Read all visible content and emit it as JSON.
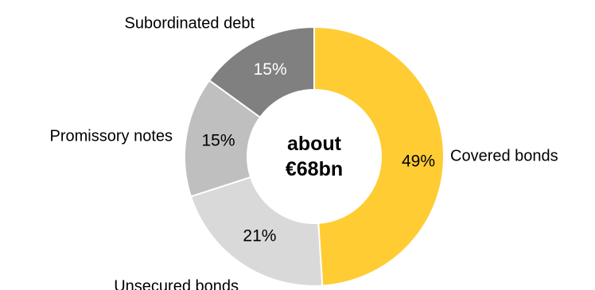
{
  "chart_data": {
    "type": "pie",
    "style": "donut",
    "center_label": [
      "about",
      "€68bn"
    ],
    "slices": [
      {
        "label": "Covered bonds",
        "value": 49,
        "value_label": "49%",
        "color": "#FFCC33",
        "text_color": "#000000"
      },
      {
        "label": "Unsecured bonds",
        "value": 21,
        "value_label": "21%",
        "color": "#D9D9D9",
        "text_color": "#000000"
      },
      {
        "label": "Promissory notes",
        "value": 15,
        "value_label": "15%",
        "color": "#BFBFBF",
        "text_color": "#000000"
      },
      {
        "label": "Subordinated debt",
        "value": 15,
        "value_label": "15%",
        "color": "#808080",
        "text_color": "#FFFFFF"
      }
    ],
    "legend": "none"
  }
}
